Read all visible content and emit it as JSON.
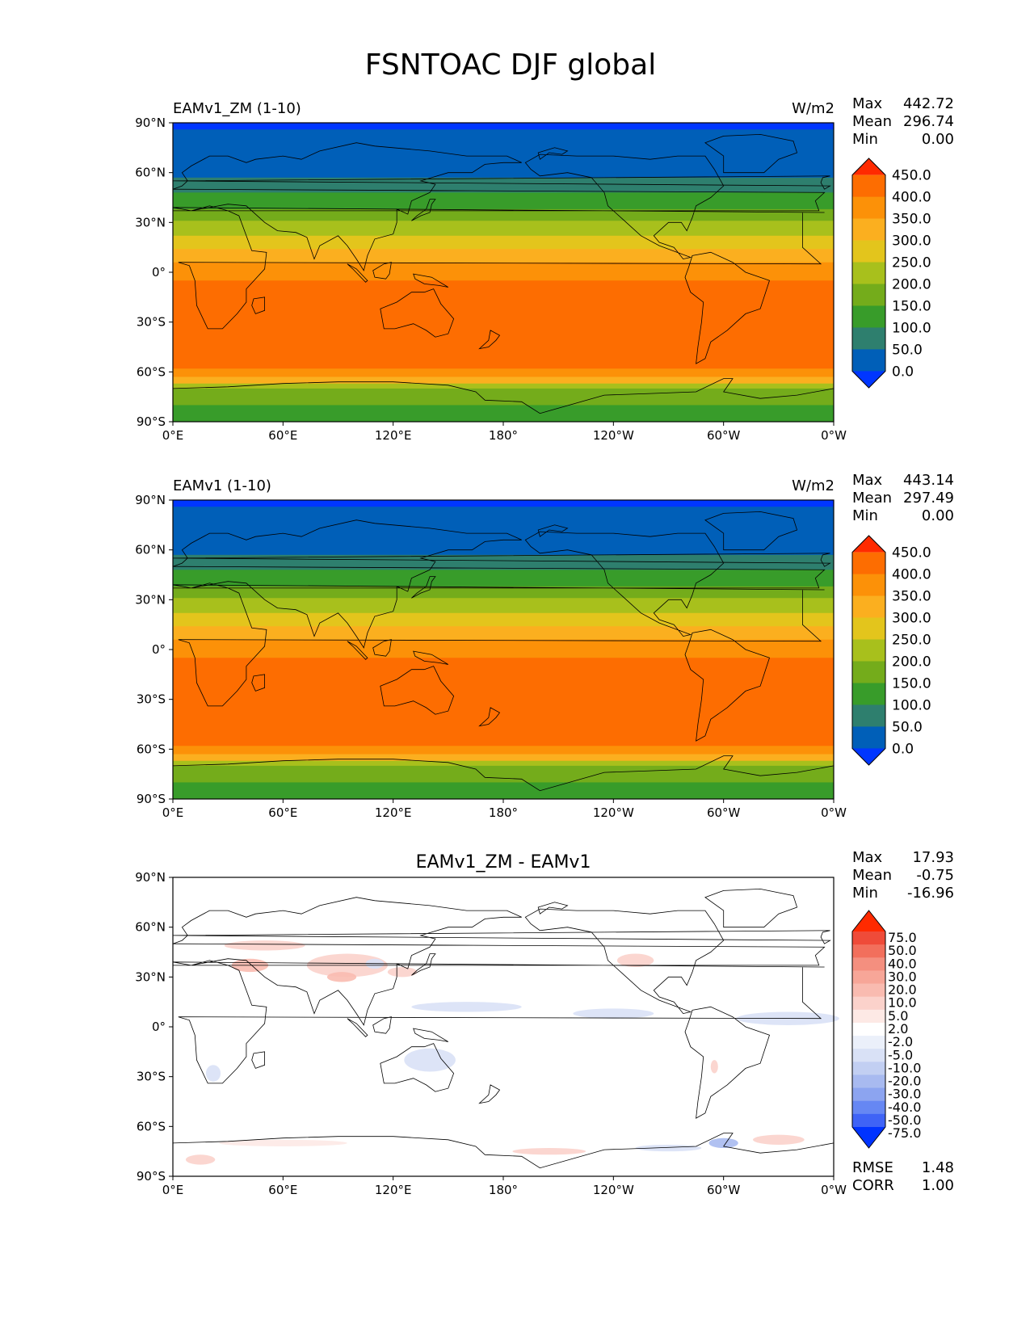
{
  "figure_title": "FSNTOAC DJF global",
  "colors": {
    "abs_levels": [
      "#0036ff",
      "#005fb8",
      "#2e7f6e",
      "#389c2a",
      "#74ac1b",
      "#a8c01c",
      "#e3c51c",
      "#fbaf1f",
      "#fc9108",
      "#fd6d01",
      "#ff2a00"
    ],
    "diff_levels": [
      "#0033ff",
      "#3f63f6",
      "#6687f3",
      "#8ca4f0",
      "#a8baf0",
      "#c2cff2",
      "#d9e1f6",
      "#ebf0fa",
      "#ffffff",
      "#fde9e5",
      "#fbd2cb",
      "#f9bbb0",
      "#f7a698",
      "#f48f7f",
      "#f26f5c",
      "#ef4b39",
      "#ff2a00"
    ],
    "land_outline": "#000000"
  },
  "chart_data": [
    {
      "type": "heatmap",
      "panel": "test",
      "title_left": "EAMv1_ZM (1-10)",
      "title_right": "W/m2",
      "stats": [
        {
          "label": "Max",
          "value": "442.72"
        },
        {
          "label": "Mean",
          "value": "296.74"
        },
        {
          "label": "Min",
          "value": "0.00"
        }
      ],
      "colorbar_ticks": [
        "450.0",
        "400.0",
        "350.0",
        "300.0",
        "250.0",
        "200.0",
        "150.0",
        "100.0",
        "50.0",
        "0.0"
      ],
      "xlabels": [
        "0°E",
        "60°E",
        "120°E",
        "180°",
        "120°W",
        "60°W",
        "0°W"
      ],
      "ylabels": [
        "90°N",
        "60°N",
        "30°N",
        "0°",
        "30°S",
        "60°S",
        "90°S"
      ],
      "lat_bands": [
        {
          "lat_from": 90,
          "lat_to": 86,
          "level": 0
        },
        {
          "lat_from": 86,
          "lat_to": 57,
          "level": 1
        },
        {
          "lat_from": 57,
          "lat_to": 48,
          "level": 2
        },
        {
          "lat_from": 48,
          "lat_to": 38,
          "level": 3
        },
        {
          "lat_from": 38,
          "lat_to": 31,
          "level": 4
        },
        {
          "lat_from": 31,
          "lat_to": 22,
          "level": 5
        },
        {
          "lat_from": 22,
          "lat_to": 14,
          "level": 6
        },
        {
          "lat_from": 14,
          "lat_to": 6,
          "level": 7
        },
        {
          "lat_from": 6,
          "lat_to": -5,
          "level": 8
        },
        {
          "lat_from": -5,
          "lat_to": -58,
          "level": 9
        },
        {
          "lat_from": -58,
          "lat_to": -63,
          "level": 8
        },
        {
          "lat_from": -63,
          "lat_to": -67,
          "level": 7
        },
        {
          "lat_from": -67,
          "lat_to": -70,
          "level": 5
        },
        {
          "lat_from": -70,
          "lat_to": -80,
          "level": 4
        },
        {
          "lat_from": -80,
          "lat_to": -90,
          "level": 3
        }
      ]
    },
    {
      "type": "heatmap",
      "panel": "reference",
      "title_left": "EAMv1 (1-10)",
      "title_right": "W/m2",
      "stats": [
        {
          "label": "Max",
          "value": "443.14"
        },
        {
          "label": "Mean",
          "value": "297.49"
        },
        {
          "label": "Min",
          "value": "0.00"
        }
      ],
      "colorbar_ticks": [
        "450.0",
        "400.0",
        "350.0",
        "300.0",
        "250.0",
        "200.0",
        "150.0",
        "100.0",
        "50.0",
        "0.0"
      ],
      "xlabels": [
        "0°E",
        "60°E",
        "120°E",
        "180°",
        "120°W",
        "60°W",
        "0°W"
      ],
      "ylabels": [
        "90°N",
        "60°N",
        "30°N",
        "0°",
        "30°S",
        "60°S",
        "90°S"
      ],
      "lat_bands": [
        {
          "lat_from": 90,
          "lat_to": 86,
          "level": 0
        },
        {
          "lat_from": 86,
          "lat_to": 57,
          "level": 1
        },
        {
          "lat_from": 57,
          "lat_to": 48,
          "level": 2
        },
        {
          "lat_from": 48,
          "lat_to": 38,
          "level": 3
        },
        {
          "lat_from": 38,
          "lat_to": 31,
          "level": 4
        },
        {
          "lat_from": 31,
          "lat_to": 22,
          "level": 5
        },
        {
          "lat_from": 22,
          "lat_to": 14,
          "level": 6
        },
        {
          "lat_from": 14,
          "lat_to": 6,
          "level": 7
        },
        {
          "lat_from": 6,
          "lat_to": -5,
          "level": 8
        },
        {
          "lat_from": -5,
          "lat_to": -58,
          "level": 9
        },
        {
          "lat_from": -58,
          "lat_to": -63,
          "level": 8
        },
        {
          "lat_from": -63,
          "lat_to": -67,
          "level": 7
        },
        {
          "lat_from": -67,
          "lat_to": -70,
          "level": 5
        },
        {
          "lat_from": -70,
          "lat_to": -80,
          "level": 4
        },
        {
          "lat_from": -80,
          "lat_to": -90,
          "level": 3
        }
      ]
    },
    {
      "type": "heatmap",
      "panel": "difference",
      "title_center": "EAMv1_ZM - EAMv1",
      "stats": [
        {
          "label": "Max",
          "value": "17.93"
        },
        {
          "label": "Mean",
          "value": "-0.75"
        },
        {
          "label": "Min",
          "value": "-16.96"
        }
      ],
      "colorbar_ticks": [
        "75.0",
        "50.0",
        "40.0",
        "30.0",
        "20.0",
        "10.0",
        "5.0",
        "2.0",
        "-2.0",
        "-5.0",
        "-10.0",
        "-20.0",
        "-30.0",
        "-40.0",
        "-50.0",
        "-75.0"
      ],
      "footer_stats": [
        {
          "label": "RMSE",
          "value": "1.48"
        },
        {
          "label": "CORR",
          "value": "1.00"
        }
      ],
      "xlabels": [
        "0°E",
        "60°E",
        "120°E",
        "180°",
        "120°W",
        "60°W",
        "0°W"
      ],
      "ylabels": [
        "90°N",
        "60°N",
        "30°N",
        "0°",
        "30°S",
        "60°S",
        "90°S"
      ],
      "anomalies": [
        {
          "lon": 50,
          "lat": 49,
          "rlon": 22,
          "rlat": 3,
          "level": 10
        },
        {
          "lon": 42,
          "lat": 37,
          "rlon": 10,
          "rlat": 4,
          "level": 11
        },
        {
          "lon": 95,
          "lat": 37,
          "rlon": 22,
          "rlat": 7,
          "level": 10
        },
        {
          "lon": 92,
          "lat": 30,
          "rlon": 8,
          "rlat": 3,
          "level": 11
        },
        {
          "lon": 125,
          "lat": 33,
          "rlon": 8,
          "rlat": 3,
          "level": 10
        },
        {
          "lon": 110,
          "lat": 38,
          "rlon": 5,
          "rlat": 3,
          "level": 6
        },
        {
          "lon": 160,
          "lat": 12,
          "rlon": 30,
          "rlat": 3,
          "level": 6
        },
        {
          "lon": 240,
          "lat": 8,
          "rlon": 22,
          "rlat": 3,
          "level": 6
        },
        {
          "lon": 335,
          "lat": 5,
          "rlon": 28,
          "rlat": 4,
          "level": 6
        },
        {
          "lon": 22,
          "lat": -28,
          "rlon": 4,
          "rlat": 5,
          "level": 6
        },
        {
          "lon": 140,
          "lat": -20,
          "rlon": 14,
          "rlat": 7,
          "level": 6
        },
        {
          "lon": 252,
          "lat": 40,
          "rlon": 10,
          "rlat": 4,
          "level": 10
        },
        {
          "lon": 295,
          "lat": -24,
          "rlon": 2,
          "rlat": 4,
          "level": 10
        },
        {
          "lon": 300,
          "lat": -70,
          "rlon": 8,
          "rlat": 3,
          "level": 4
        },
        {
          "lon": 270,
          "lat": -73,
          "rlon": 18,
          "rlat": 2,
          "level": 6
        },
        {
          "lon": 330,
          "lat": -68,
          "rlon": 14,
          "rlat": 3,
          "level": 10
        },
        {
          "lon": 60,
          "lat": -70,
          "rlon": 35,
          "rlat": 2,
          "level": 9
        },
        {
          "lon": 205,
          "lat": -75,
          "rlon": 20,
          "rlat": 2,
          "level": 10
        },
        {
          "lon": 15,
          "lat": -80,
          "rlon": 8,
          "rlat": 3,
          "level": 10
        }
      ]
    }
  ]
}
